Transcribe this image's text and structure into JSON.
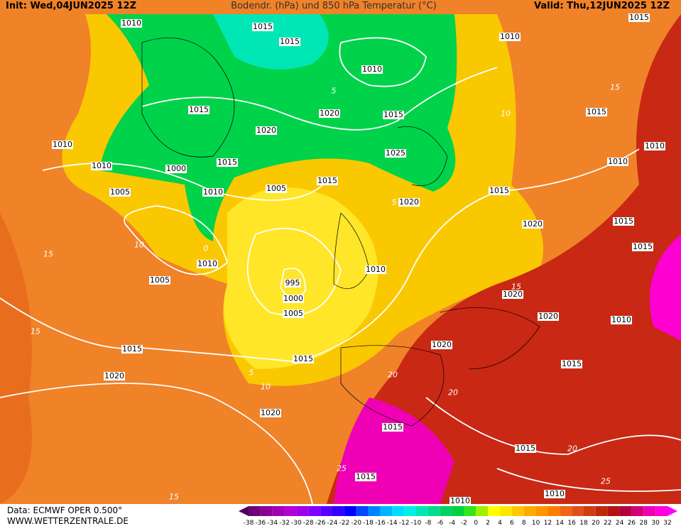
{
  "header": {
    "init": "Init: Wed,04JUN2025 12Z",
    "title": "Bodendr. (hPa) und 850 hPa Temperatur (°C)",
    "valid": "Valid: Thu,12JUN2025 12Z"
  },
  "footer": {
    "source": "Data: ECMWF OPER 0.500°",
    "site": "WWW.WETTERZENTRALE.DE"
  },
  "scale": {
    "labels": [
      -38,
      -36,
      -34,
      -32,
      -30,
      -28,
      -26,
      -24,
      -22,
      -20,
      -18,
      -16,
      -14,
      -12,
      -10,
      -8,
      -6,
      -4,
      -2,
      0,
      2,
      4,
      6,
      8,
      10,
      12,
      14,
      16,
      18,
      20,
      22,
      24,
      26,
      28,
      30,
      32
    ],
    "colors": [
      "#50005a",
      "#6e0078",
      "#8c0096",
      "#a000b4",
      "#b400d2",
      "#a000e6",
      "#8200ff",
      "#5a00ff",
      "#3200ff",
      "#0000ff",
      "#0046ff",
      "#0082ff",
      "#00b4ff",
      "#00dcff",
      "#00f0e6",
      "#00e6b4",
      "#00dc8c",
      "#00d264",
      "#00d23c",
      "#32e61e",
      "#a0f000",
      "#ffff00",
      "#ffe600",
      "#ffc800",
      "#ffaa00",
      "#ff9600",
      "#ff7d00",
      "#f06414",
      "#e0501e",
      "#d03c14",
      "#c0280a",
      "#b01414",
      "#b4003c",
      "#d20078",
      "#f000b4",
      "#ff00dc",
      "#ff00ff"
    ]
  },
  "map": {
    "isobar_labels": [
      "1015",
      "1015",
      "1010",
      "1015",
      "1010",
      "1010",
      "1015",
      "1020",
      "1020",
      "1015",
      "1015",
      "1010",
      "1010",
      "1000",
      "1015",
      "1025",
      "1010",
      "1010",
      "1005",
      "1010",
      "1005",
      "1015",
      "1015",
      "1020",
      "1020",
      "1015",
      "1015",
      "1010",
      "1010",
      "995",
      "1000",
      "1005",
      "1005",
      "1020",
      "1020",
      "1010",
      "1020",
      "1015",
      "1015",
      "1015",
      "1020",
      "1020",
      "1015",
      "1015",
      "1015",
      "1010",
      "1010"
    ],
    "isotherm_labels": [
      "10",
      "15",
      "15",
      "0",
      "5",
      "10",
      "20",
      "20",
      "25",
      "15",
      "10",
      "5",
      "15",
      "20",
      "25",
      "15",
      "5"
    ]
  }
}
